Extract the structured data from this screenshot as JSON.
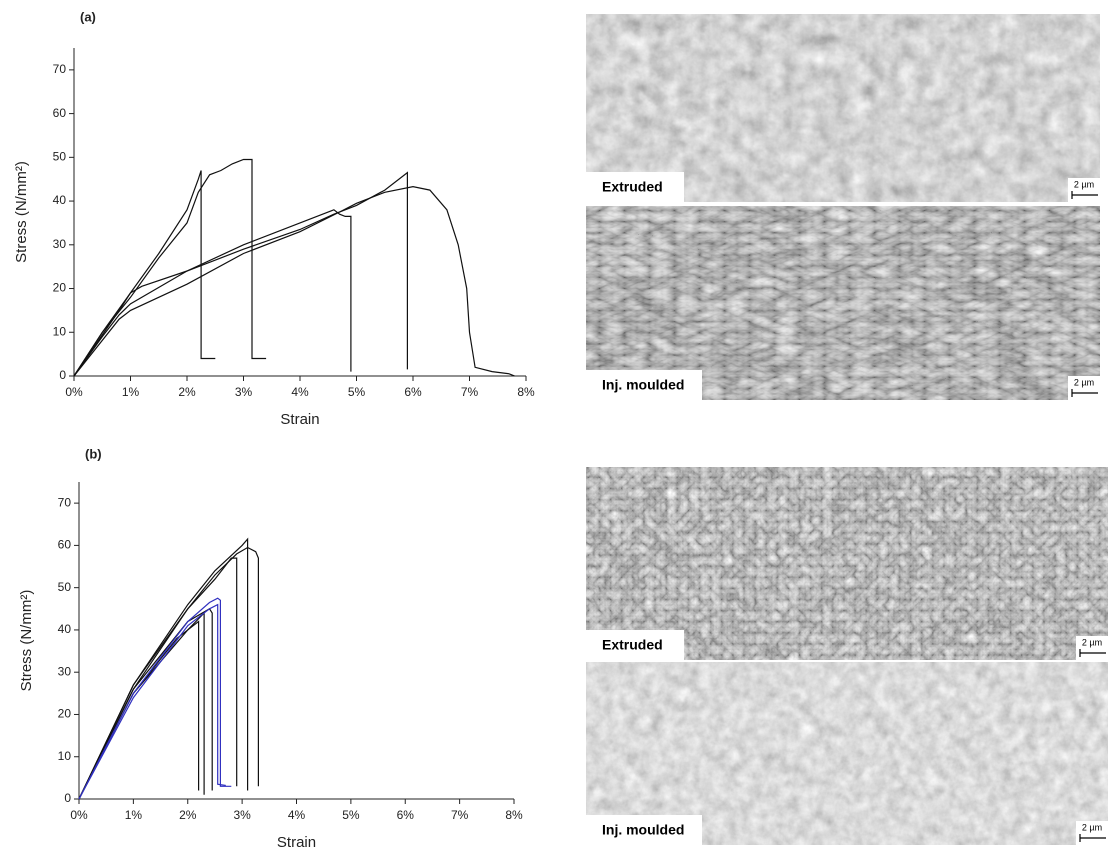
{
  "chart_data": [
    {
      "type": "line",
      "panel_label": "(a)",
      "x_label": "Strain",
      "y_label": "Stress (N/mm²)",
      "xlim": [
        0,
        8
      ],
      "ylim": [
        0,
        75
      ],
      "xticks": [
        {
          "value": 0,
          "label": "0%"
        },
        {
          "value": 1,
          "label": "1%"
        },
        {
          "value": 2,
          "label": "2%"
        },
        {
          "value": 3,
          "label": "3%"
        },
        {
          "value": 4,
          "label": "4%"
        },
        {
          "value": 5,
          "label": "5%"
        },
        {
          "value": 6,
          "label": "6%"
        },
        {
          "value": 7,
          "label": "7%"
        },
        {
          "value": 8,
          "label": "8%"
        }
      ],
      "yticks": [
        0,
        10,
        20,
        30,
        40,
        50,
        60,
        70
      ],
      "series": [
        {
          "color": "#111111",
          "x": [
            0,
            0.5,
            1,
            1.5,
            2,
            2.2,
            2.25,
            2.25,
            2.5
          ],
          "values": [
            0,
            10,
            19,
            28,
            38,
            45,
            47,
            4,
            4
          ]
        },
        {
          "color": "#111111",
          "x": [
            0,
            0.5,
            1,
            1.5,
            2,
            2.2,
            2.4,
            2.6,
            2.8,
            3.0,
            3.15,
            3.15,
            3.4
          ],
          "values": [
            0,
            10,
            18,
            27,
            35,
            42,
            46,
            47,
            48.5,
            49.5,
            49.5,
            4,
            4
          ]
        },
        {
          "color": "#111111",
          "x": [
            0,
            0.5,
            0.8,
            1,
            2,
            3,
            4,
            4.6,
            4.7,
            4.8,
            4.9,
            4.9
          ],
          "values": [
            0,
            9,
            14,
            16.5,
            24,
            30,
            35,
            38,
            37,
            36.5,
            36.5,
            1
          ]
        },
        {
          "color": "#111111",
          "x": [
            0,
            0.8,
            1,
            1.2,
            2,
            3,
            4,
            4.6,
            5,
            5.5,
            5.9,
            5.9
          ],
          "values": [
            0,
            15,
            19,
            20.5,
            24,
            29,
            33.5,
            37,
            39,
            42.5,
            46.5,
            1.5
          ]
        },
        {
          "color": "#111111",
          "x": [
            0,
            0.8,
            1,
            2,
            3,
            4,
            4.7,
            5,
            5.5,
            6,
            6.3,
            6.6,
            6.8,
            6.95,
            7,
            7.1,
            7.4,
            7.7,
            7.8
          ],
          "values": [
            0,
            13,
            15,
            21,
            28,
            33,
            37.5,
            39.5,
            42,
            43.3,
            42.5,
            38,
            30,
            20,
            10,
            2,
            1,
            0.5,
            0
          ]
        }
      ]
    },
    {
      "type": "line",
      "panel_label": "(b)",
      "x_label": "Strain",
      "y_label": "Stress (N/mm²)",
      "xlim": [
        0,
        8
      ],
      "ylim": [
        0,
        75
      ],
      "xticks": [
        {
          "value": 0,
          "label": "0%"
        },
        {
          "value": 1,
          "label": "1%"
        },
        {
          "value": 2,
          "label": "2%"
        },
        {
          "value": 3,
          "label": "3%"
        },
        {
          "value": 4,
          "label": "4%"
        },
        {
          "value": 5,
          "label": "5%"
        },
        {
          "value": 6,
          "label": "6%"
        },
        {
          "value": 7,
          "label": "7%"
        },
        {
          "value": 8,
          "label": "8%"
        }
      ],
      "yticks": [
        0,
        10,
        20,
        30,
        40,
        50,
        60,
        70
      ],
      "series": [
        {
          "color": "#111111",
          "x": [
            0,
            1,
            2,
            2.5,
            3,
            3.1,
            3.1
          ],
          "values": [
            0,
            27,
            46,
            54,
            60,
            61.5,
            2
          ]
        },
        {
          "color": "#111111",
          "x": [
            0,
            1,
            2,
            2.5,
            2.8,
            2.9,
            2.9
          ],
          "values": [
            0,
            27,
            45,
            52,
            57,
            57,
            3
          ]
        },
        {
          "color": "#111111",
          "x": [
            0,
            1,
            2,
            2.5,
            2.9,
            3.1,
            3.25,
            3.3,
            3.3
          ],
          "values": [
            0,
            26,
            45,
            53,
            58,
            59.5,
            58.5,
            57,
            3
          ]
        },
        {
          "color": "#111111",
          "x": [
            0,
            1,
            1.8,
            2.1,
            2.2,
            2.2
          ],
          "values": [
            0,
            25,
            38,
            41,
            42,
            2
          ]
        },
        {
          "color": "#111111",
          "x": [
            0,
            1,
            2,
            2.3,
            2.3
          ],
          "values": [
            0,
            25,
            40,
            44,
            1
          ]
        },
        {
          "color": "#111111",
          "x": [
            0,
            1,
            2,
            2.4,
            2.45,
            2.45
          ],
          "values": [
            0,
            26,
            42,
            45,
            44,
            2
          ]
        },
        {
          "color": "#3030c0",
          "x": [
            0,
            1,
            2,
            2.4,
            2.55,
            2.6,
            2.6,
            2.8
          ],
          "values": [
            0,
            25,
            42,
            46.5,
            47.5,
            47,
            3,
            3
          ]
        },
        {
          "color": "#3030c0",
          "x": [
            0,
            1,
            2,
            2.4,
            2.55,
            2.55,
            2.7
          ],
          "values": [
            0,
            24,
            41,
            45,
            46,
            3.5,
            3.2
          ]
        }
      ]
    }
  ],
  "micrographs": [
    {
      "label": "Extruded",
      "scale": "2 µm"
    },
    {
      "label": "Inj. moulded",
      "scale": "2 µm"
    },
    {
      "label": "Extruded",
      "scale": "2 µm"
    },
    {
      "label": "Inj. moulded",
      "scale": "2 µm"
    }
  ]
}
